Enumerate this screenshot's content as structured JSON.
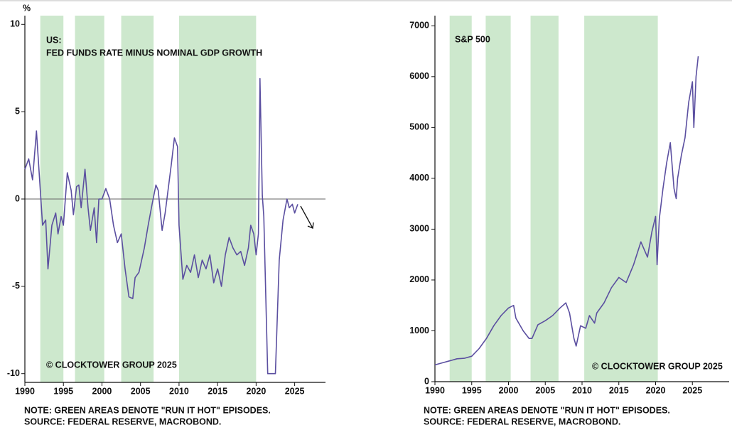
{
  "chart_data": [
    {
      "type": "line",
      "title": "US:",
      "subtitle": "FED FUNDS RATE MINUS NOMINAL GDP GROWTH",
      "y_label": "%",
      "annotation": "© CLOCKTOWER GROUP 2025",
      "note": "NOTE: GREEN AREAS DENOTE \"RUN IT HOT\" EPISODES.",
      "source": "SOURCE: FEDERAL RESERVE, MACROBOND.",
      "color": "#5b4fa0",
      "shade_color": "#cde8cd",
      "shaded": [
        [
          1992,
          1995
        ],
        [
          1996.5,
          2000.3
        ],
        [
          2002.5,
          2006.7
        ],
        [
          2010,
          2020
        ]
      ],
      "x": [
        1990,
        1990.5,
        1991,
        1991.5,
        1992,
        1992.3,
        1992.7,
        1993,
        1993.5,
        1994,
        1994.3,
        1994.7,
        1995,
        1995.5,
        1996,
        1996.3,
        1996.7,
        1997,
        1997.3,
        1997.8,
        1998.2,
        1998.5,
        1999,
        1999.3,
        1999.6,
        2000,
        2000.5,
        2001,
        2001.5,
        2002,
        2002.5,
        2003,
        2003.5,
        2004,
        2004.3,
        2004.8,
        2005.5,
        2006,
        2006.5,
        2007,
        2007.3,
        2007.8,
        2008.2,
        2009,
        2009.4,
        2009.8,
        2010,
        2010.5,
        2011,
        2011.5,
        2012,
        2012.5,
        2013,
        2013.5,
        2014,
        2014.5,
        2015,
        2015.5,
        2016,
        2016.5,
        2017,
        2017.5,
        2018,
        2018.5,
        2019,
        2019.3,
        2019.7,
        2020,
        2020.3,
        2020.5,
        2020.8,
        2021,
        2021.5,
        2022,
        2022.5,
        2023,
        2023.5,
        2024,
        2024.3,
        2024.7,
        2025,
        2025.4
      ],
      "values": [
        1.7,
        2.3,
        1.1,
        3.9,
        0.5,
        -1.5,
        -1.2,
        -4.0,
        -1.5,
        -0.8,
        -2.0,
        -1.0,
        -1.5,
        1.5,
        0.5,
        -0.9,
        0.7,
        0.8,
        -0.5,
        1.7,
        -0.5,
        -1.8,
        -0.5,
        -2.5,
        0,
        0,
        0.6,
        0,
        -1.5,
        -2.5,
        -2.0,
        -4.0,
        -5.6,
        -5.7,
        -4.5,
        -4.2,
        -2.8,
        -1.5,
        -0.3,
        0.8,
        0.5,
        -1.8,
        -0.8,
        2.0,
        3.5,
        3.0,
        -1.5,
        -4.6,
        -3.8,
        -4.2,
        -3.2,
        -4.5,
        -3.5,
        -4.0,
        -3.2,
        -4.8,
        -4.0,
        -5.0,
        -3.2,
        -2.2,
        -2.8,
        -3.2,
        -3.0,
        -3.8,
        -2.8,
        -1.5,
        -2.0,
        -3.2,
        -2.0,
        6.9,
        0.2,
        -1.0,
        -10,
        -10,
        -10,
        -3.5,
        -1.2,
        0,
        -0.5,
        -0.3,
        -0.8,
        -0.3
      ],
      "xlim": [
        1990,
        2029
      ],
      "ylim": [
        -10.5,
        10.5
      ],
      "xticks": [
        1990,
        1995,
        2000,
        2005,
        2010,
        2015,
        2020,
        2025
      ],
      "yticks": [
        -10,
        -5,
        0,
        5,
        10
      ]
    },
    {
      "type": "line",
      "title": "S&P 500",
      "annotation": "© CLOCKTOWER GROUP 2025",
      "note": "NOTE: GREEN AREAS DENOTE \"RUN IT HOT\" EPISODES.",
      "source": "SOURCE: FEDERAL RESERVE, MACROBOND.",
      "color": "#5b4fa0",
      "shade_color": "#cde8cd",
      "shaded": [
        [
          1992,
          1995
        ],
        [
          1996.9,
          2000.3
        ],
        [
          2003,
          2006.8
        ],
        [
          2010.3,
          2020.3
        ]
      ],
      "x": [
        1990,
        1991,
        1992,
        1993,
        1994,
        1995,
        1996,
        1997,
        1998,
        1999,
        2000,
        2000.7,
        2001,
        2002,
        2002.8,
        2003.2,
        2004,
        2005,
        2006,
        2007,
        2007.8,
        2008.3,
        2008.9,
        2009.2,
        2009.8,
        2010.5,
        2011,
        2011.7,
        2012,
        2013,
        2014,
        2015,
        2016,
        2017,
        2018,
        2018.9,
        2019.5,
        2020,
        2020.2,
        2020.5,
        2021,
        2021.5,
        2022,
        2022.5,
        2022.8,
        2023,
        2023.5,
        2024,
        2024.5,
        2025,
        2025.2,
        2025.5,
        2025.8
      ],
      "values": [
        330,
        370,
        410,
        450,
        460,
        500,
        650,
        850,
        1100,
        1300,
        1450,
        1500,
        1250,
        1000,
        850,
        850,
        1120,
        1200,
        1300,
        1450,
        1550,
        1350,
        850,
        700,
        1100,
        1050,
        1300,
        1150,
        1350,
        1550,
        1850,
        2050,
        1950,
        2300,
        2750,
        2450,
        2950,
        3250,
        2300,
        3200,
        3800,
        4300,
        4700,
        3800,
        3600,
        4000,
        4450,
        4800,
        5500,
        5900,
        5000,
        6000,
        6400
      ],
      "xlim": [
        1990,
        2030
      ],
      "ylim": [
        0,
        7200
      ],
      "xticks": [
        1990,
        1995,
        2000,
        2005,
        2010,
        2015,
        2020,
        2025
      ],
      "yticks": [
        0,
        1000,
        2000,
        3000,
        4000,
        5000,
        6000,
        7000
      ]
    }
  ]
}
